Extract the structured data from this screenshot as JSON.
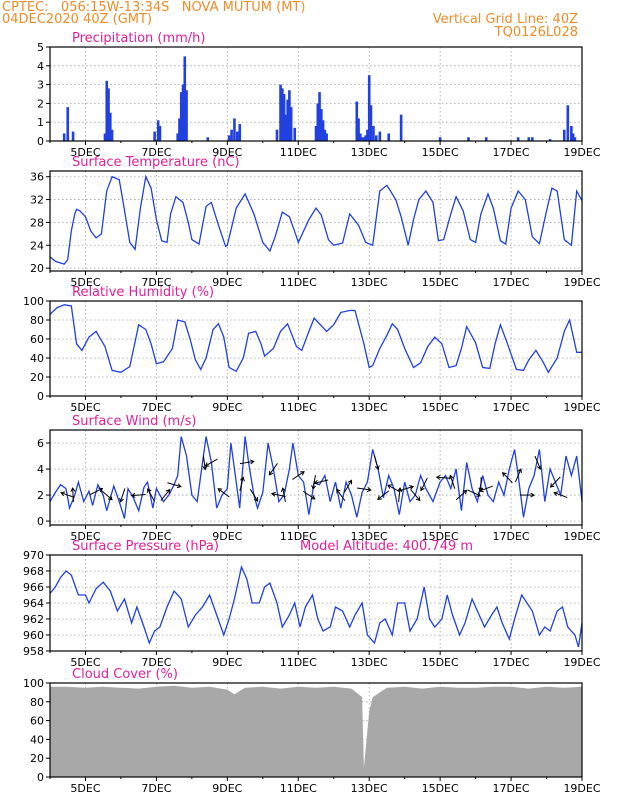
{
  "header": {
    "line1": "CPTEC:   056:15W-13:34S   NOVA MUTUM (MT)",
    "line2": "04DEC2020 40Z (GMT)",
    "vertical_grid": "Vertical Grid Line: 40Z",
    "code": "TQ0126L028"
  },
  "colors": {
    "header": "#f08c28",
    "panel_title": "#e0209a",
    "series": "#2040e0",
    "cloud": "#a8a8a8",
    "grid": "#a0a0a0",
    "axis": "#000000"
  },
  "x_axis": {
    "range_days": [
      4.0,
      19.0
    ],
    "ticks": [
      5,
      7,
      9,
      11,
      13,
      15,
      17,
      19
    ],
    "tick_labels": [
      "5DEC",
      "7DEC",
      "9DEC",
      "11DEC",
      "13DEC",
      "15DEC",
      "17DEC",
      "19DEC"
    ]
  },
  "chart_data": [
    {
      "type": "bar",
      "title": "Precipitation (mm/h)",
      "ylim": [
        0,
        5
      ],
      "yticks": [
        0,
        1,
        2,
        3,
        4,
        5
      ],
      "x": [
        4.4,
        4.5,
        4.65,
        5.55,
        5.6,
        5.65,
        5.7,
        5.75,
        6.95,
        7.05,
        7.1,
        7.6,
        7.65,
        7.7,
        7.75,
        7.8,
        7.85,
        8.45,
        9.05,
        9.12,
        9.2,
        9.28,
        9.35,
        10.4,
        10.5,
        10.55,
        10.6,
        10.65,
        10.7,
        10.75,
        10.8,
        10.9,
        11.5,
        11.55,
        11.6,
        11.65,
        11.7,
        11.75,
        11.8,
        12.65,
        12.7,
        12.75,
        12.8,
        12.85,
        12.9,
        12.95,
        13.0,
        13.05,
        13.12,
        13.2,
        13.3,
        13.55,
        13.9,
        15.0,
        15.8,
        16.3,
        17.2,
        17.5,
        17.6,
        18.1,
        18.5,
        18.6,
        18.7,
        18.75,
        18.8
      ],
      "values": [
        0.4,
        1.8,
        0.5,
        0.4,
        3.2,
        2.8,
        1.5,
        0.6,
        0.5,
        1.1,
        0.8,
        0.4,
        1.2,
        2.6,
        3.0,
        4.5,
        2.7,
        0.2,
        0.3,
        0.6,
        1.2,
        0.5,
        0.9,
        0.6,
        3.0,
        2.8,
        2.5,
        1.4,
        2.2,
        2.7,
        1.8,
        0.7,
        0.8,
        2.0,
        2.6,
        1.7,
        1.1,
        0.6,
        0.4,
        2.1,
        1.2,
        0.4,
        0.2,
        0.2,
        0.3,
        0.6,
        3.5,
        1.9,
        0.8,
        0.3,
        0.5,
        0.4,
        1.4,
        0.2,
        0.2,
        0.2,
        0.2,
        0.2,
        0.2,
        0.1,
        0.6,
        1.9,
        0.8,
        0.4,
        0.2
      ]
    },
    {
      "type": "line",
      "title": "Surface Temperature (nC)",
      "ylim": [
        19.5,
        37
      ],
      "yticks": [
        20,
        24,
        28,
        32,
        36
      ],
      "x": [
        4.0,
        4.15,
        4.3,
        4.4,
        4.5,
        4.6,
        4.7,
        4.75,
        4.85,
        5.0,
        5.15,
        5.3,
        5.45,
        5.6,
        5.75,
        5.95,
        6.05,
        6.25,
        6.4,
        6.55,
        6.7,
        6.85,
        7.0,
        7.15,
        7.3,
        7.4,
        7.55,
        7.75,
        7.9,
        8.0,
        8.2,
        8.4,
        8.55,
        8.75,
        8.95,
        9.0,
        9.25,
        9.5,
        9.75,
        10.0,
        10.2,
        10.35,
        10.55,
        10.75,
        10.95,
        11.0,
        11.3,
        11.5,
        11.65,
        11.85,
        12.0,
        12.25,
        12.45,
        12.7,
        12.9,
        13.1,
        13.3,
        13.5,
        13.75,
        13.9,
        14.1,
        14.25,
        14.4,
        14.6,
        14.8,
        14.95,
        15.1,
        15.3,
        15.45,
        15.65,
        15.85,
        16.0,
        16.15,
        16.35,
        16.5,
        16.7,
        16.85,
        17.0,
        17.2,
        17.4,
        17.6,
        17.8,
        18.0,
        18.15,
        18.3,
        18.5,
        18.7,
        18.85,
        19.0
      ],
      "values": [
        22.0,
        21.2,
        20.9,
        20.7,
        21.5,
        26.5,
        29.5,
        30.3,
        30.0,
        29.0,
        26.5,
        25.3,
        26.0,
        33.5,
        36.0,
        35.5,
        32.0,
        24.5,
        23.3,
        30.5,
        36.0,
        34.0,
        28.5,
        24.8,
        24.5,
        29.5,
        32.5,
        31.5,
        28.0,
        25.0,
        24.2,
        30.8,
        31.5,
        27.5,
        23.8,
        24.0,
        30.5,
        33.0,
        29.5,
        24.5,
        23.0,
        25.5,
        29.8,
        29.0,
        25.5,
        24.5,
        28.5,
        30.5,
        29.3,
        25.0,
        24.0,
        24.4,
        29.5,
        27.5,
        24.5,
        24.0,
        33.5,
        34.5,
        32.0,
        29.0,
        24.0,
        28.5,
        32.0,
        33.5,
        31.5,
        24.8,
        25.0,
        29.5,
        32.5,
        30.0,
        25.0,
        24.5,
        29.5,
        33.0,
        30.5,
        24.8,
        24.2,
        30.5,
        33.5,
        32.0,
        25.5,
        24.3,
        30.0,
        34.0,
        33.5,
        25.0,
        24.0,
        33.5,
        31.8
      ]
    },
    {
      "type": "line",
      "title": "Relative Humidity (%)",
      "ylim": [
        0,
        100
      ],
      "yticks": [
        0,
        20,
        40,
        60,
        80,
        100
      ],
      "x": [
        4.0,
        4.2,
        4.4,
        4.6,
        4.75,
        4.9,
        5.1,
        5.3,
        5.55,
        5.75,
        6.0,
        6.25,
        6.5,
        6.7,
        6.85,
        7.0,
        7.2,
        7.45,
        7.6,
        7.8,
        7.95,
        8.1,
        8.25,
        8.4,
        8.6,
        8.75,
        8.9,
        9.05,
        9.25,
        9.45,
        9.6,
        9.8,
        9.95,
        10.05,
        10.3,
        10.5,
        10.7,
        10.95,
        11.1,
        11.3,
        11.45,
        11.6,
        11.8,
        12.0,
        12.2,
        12.45,
        12.6,
        12.85,
        13.0,
        13.1,
        13.3,
        13.5,
        13.65,
        13.8,
        14.0,
        14.25,
        14.45,
        14.65,
        14.85,
        15.05,
        15.25,
        15.45,
        15.6,
        15.75,
        16.0,
        16.2,
        16.4,
        16.55,
        16.7,
        16.9,
        17.15,
        17.35,
        17.5,
        17.7,
        17.9,
        18.05,
        18.3,
        18.5,
        18.65,
        18.85,
        19.0
      ],
      "values": [
        86.0,
        93.0,
        96.0,
        95.0,
        55.0,
        48.0,
        62.0,
        68.0,
        52.0,
        27.0,
        25.0,
        31.0,
        75.0,
        70.0,
        55.0,
        34.0,
        36.0,
        50.0,
        80.0,
        78.0,
        60.0,
        38.0,
        28.0,
        40.0,
        70.0,
        76.0,
        62.0,
        30.0,
        26.0,
        40.0,
        66.0,
        68.0,
        55.0,
        42.0,
        50.0,
        68.0,
        76.0,
        52.0,
        48.0,
        68.0,
        82.0,
        76.0,
        68.0,
        75.0,
        88.0,
        90.0,
        90.0,
        55.0,
        30.0,
        32.0,
        50.0,
        64.0,
        76.0,
        70.0,
        50.0,
        30.0,
        35.0,
        52.0,
        62.0,
        55.0,
        30.0,
        32.0,
        50.0,
        73.0,
        56.0,
        30.0,
        29.0,
        55.0,
        75.0,
        55.0,
        28.0,
        27.0,
        38.0,
        48.0,
        36.0,
        25.0,
        40.0,
        68.0,
        80.0,
        46.0,
        46.0
      ]
    },
    {
      "type": "line",
      "title": "Surface Wind (m/s)",
      "ylim": [
        -0.3,
        7
      ],
      "yticks": [
        0,
        2,
        4,
        6
      ],
      "x": [
        4.0,
        4.15,
        4.3,
        4.45,
        4.55,
        4.7,
        4.8,
        4.95,
        5.1,
        5.2,
        5.35,
        5.5,
        5.6,
        5.8,
        5.95,
        6.1,
        6.2,
        6.35,
        6.5,
        6.65,
        6.75,
        6.9,
        7.0,
        7.2,
        7.35,
        7.5,
        7.6,
        7.7,
        7.85,
        8.0,
        8.15,
        8.3,
        8.4,
        8.55,
        8.7,
        8.85,
        9.0,
        9.1,
        9.25,
        9.35,
        9.5,
        9.6,
        9.75,
        9.85,
        10.0,
        10.15,
        10.3,
        10.45,
        10.6,
        10.75,
        10.85,
        11.0,
        11.15,
        11.3,
        11.45,
        11.6,
        11.75,
        11.9,
        12.05,
        12.2,
        12.35,
        12.5,
        12.65,
        12.8,
        12.95,
        13.1,
        13.25,
        13.4,
        13.55,
        13.7,
        13.85,
        14.0,
        14.15,
        14.3,
        14.45,
        14.6,
        14.8,
        15.0,
        15.15,
        15.3,
        15.45,
        15.6,
        15.75,
        15.9,
        16.05,
        16.2,
        16.35,
        16.5,
        16.65,
        16.8,
        16.95,
        17.1,
        17.2,
        17.35,
        17.5,
        17.65,
        17.8,
        17.95,
        18.1,
        18.25,
        18.4,
        18.55,
        18.7,
        18.85,
        19.0
      ],
      "values": [
        1.5,
        2.2,
        2.8,
        2.5,
        1.0,
        2.0,
        3.0,
        1.5,
        2.3,
        1.2,
        2.8,
        2.0,
        0.8,
        2.7,
        1.5,
        0.2,
        2.5,
        1.8,
        0.8,
        2.6,
        3.0,
        1.0,
        2.5,
        1.5,
        2.0,
        2.8,
        3.5,
        6.5,
        5.0,
        2.0,
        1.5,
        4.5,
        6.5,
        4.5,
        1.0,
        2.0,
        2.5,
        6.0,
        3.0,
        1.0,
        6.5,
        4.5,
        2.0,
        1.0,
        2.2,
        6.0,
        4.0,
        1.5,
        2.0,
        4.0,
        6.0,
        3.5,
        3.0,
        0.5,
        3.0,
        2.8,
        3.5,
        1.5,
        3.0,
        1.0,
        3.0,
        2.0,
        0.3,
        2.2,
        3.0,
        5.5,
        4.0,
        1.8,
        3.5,
        2.5,
        0.5,
        3.0,
        1.5,
        2.0,
        3.5,
        2.5,
        1.5,
        3.0,
        3.5,
        2.5,
        4.0,
        0.8,
        4.5,
        2.5,
        1.5,
        3.5,
        2.0,
        1.5,
        3.0,
        2.0,
        4.0,
        5.5,
        3.5,
        0.3,
        2.5,
        3.5,
        5.5,
        1.5,
        4.0,
        3.0,
        2.0,
        5.0,
        3.5,
        5.0,
        1.5
      ],
      "vectors_x": [
        4.5,
        4.65,
        5.3,
        5.6,
        6.05,
        6.5,
        6.85,
        7.25,
        7.5,
        8.35,
        8.55,
        8.9,
        9.4,
        9.55,
        9.75,
        10.3,
        10.45,
        10.6,
        11.0,
        11.3,
        11.45,
        11.65,
        12.2,
        12.4,
        12.85,
        13.2,
        13.4,
        13.7,
        13.85,
        14.05,
        14.3,
        14.55,
        15.1,
        15.35,
        15.6,
        15.95,
        16.15,
        16.3,
        16.9,
        17.2,
        17.45,
        17.75,
        18.25,
        18.4
      ]
    },
    {
      "type": "line",
      "title": "Surface Pressure (hPa)",
      "annotation": "Model Altitude: 400.749 m",
      "ylim": [
        958,
        970
      ],
      "yticks": [
        958,
        960,
        962,
        964,
        966,
        968,
        970
      ],
      "x": [
        4.0,
        4.15,
        4.3,
        4.45,
        4.6,
        4.8,
        5.0,
        5.1,
        5.3,
        5.5,
        5.7,
        5.9,
        6.1,
        6.3,
        6.45,
        6.65,
        6.8,
        6.95,
        7.1,
        7.3,
        7.5,
        7.7,
        7.9,
        8.1,
        8.3,
        8.5,
        8.7,
        8.9,
        9.05,
        9.2,
        9.4,
        9.55,
        9.7,
        9.9,
        10.05,
        10.2,
        10.4,
        10.55,
        10.75,
        10.9,
        11.05,
        11.2,
        11.4,
        11.55,
        11.7,
        11.9,
        12.05,
        12.25,
        12.45,
        12.6,
        12.8,
        12.95,
        13.15,
        13.3,
        13.45,
        13.65,
        13.8,
        14.0,
        14.15,
        14.35,
        14.55,
        14.7,
        14.85,
        15.05,
        15.2,
        15.35,
        15.55,
        15.7,
        15.9,
        16.05,
        16.25,
        16.45,
        16.6,
        16.75,
        16.95,
        17.1,
        17.3,
        17.45,
        17.6,
        17.8,
        17.95,
        18.1,
        18.3,
        18.45,
        18.6,
        18.8,
        18.9,
        19.0
      ],
      "values": [
        965.2,
        966.0,
        967.2,
        968.0,
        967.5,
        965.0,
        965.0,
        964.0,
        965.8,
        966.6,
        965.5,
        963.0,
        964.5,
        961.5,
        963.5,
        961.0,
        959.0,
        960.5,
        961.0,
        963.5,
        965.5,
        964.5,
        961.0,
        962.5,
        963.5,
        965.0,
        962.5,
        960.0,
        962.0,
        964.5,
        968.5,
        967.0,
        964.0,
        964.0,
        966.0,
        966.5,
        964.0,
        961.0,
        962.5,
        964.0,
        961.0,
        963.5,
        965.0,
        962.0,
        960.5,
        961.0,
        963.5,
        963.0,
        961.0,
        962.5,
        964.0,
        960.0,
        959.0,
        961.5,
        962.0,
        960.0,
        964.0,
        964.0,
        960.5,
        962.0,
        966.0,
        962.0,
        961.0,
        962.0,
        965.0,
        962.5,
        960.0,
        961.5,
        964.5,
        963.0,
        961.0,
        962.5,
        963.5,
        961.5,
        959.5,
        962.0,
        965.0,
        964.0,
        963.0,
        960.0,
        961.0,
        960.5,
        963.0,
        963.5,
        961.0,
        960.0,
        958.5,
        961.5
      ]
    },
    {
      "type": "area",
      "title": "Cloud Cover (%)",
      "ylim": [
        0,
        100
      ],
      "yticks": [
        0,
        20,
        40,
        60,
        80,
        100
      ],
      "x": [
        4.0,
        4.5,
        5.0,
        5.5,
        6.0,
        6.5,
        7.0,
        7.5,
        8.0,
        8.5,
        9.0,
        9.2,
        9.5,
        10.0,
        10.5,
        11.0,
        11.5,
        12.0,
        12.5,
        12.8,
        12.85,
        12.9,
        13.0,
        13.1,
        13.5,
        14.0,
        14.5,
        15.0,
        15.5,
        16.0,
        16.5,
        17.0,
        17.5,
        18.0,
        18.5,
        19.0
      ],
      "values": [
        96,
        96,
        95,
        96,
        95,
        94,
        96,
        97,
        95,
        96,
        93,
        88,
        95,
        96,
        94,
        96,
        95,
        96,
        94,
        85,
        10,
        30,
        70,
        85,
        95,
        96,
        94,
        96,
        95,
        95,
        96,
        96,
        94,
        96,
        95,
        96
      ]
    }
  ]
}
